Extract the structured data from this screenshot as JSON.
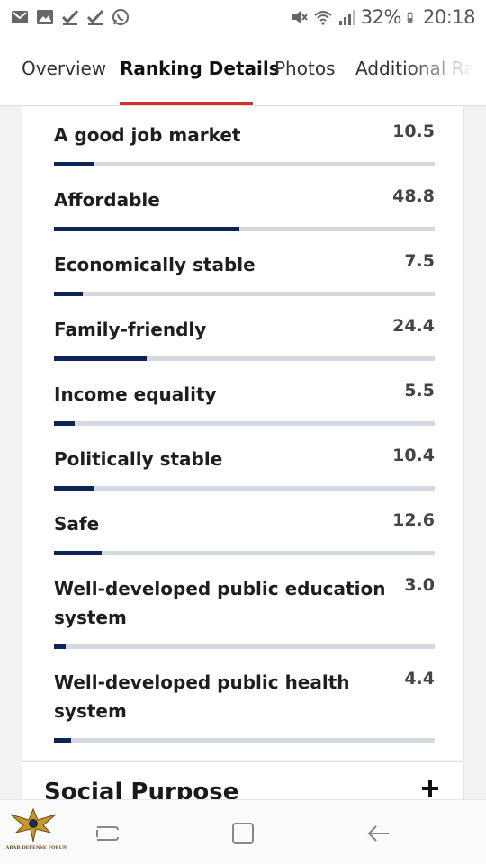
{
  "status_bar": {
    "battery_percent": "32%",
    "time": "20:18",
    "left_icons": [
      "gmail-icon",
      "gallery-icon",
      "check-icon",
      "check-icon",
      "whatsapp-icon"
    ],
    "right_icons": [
      "mute-icon",
      "wifi-icon",
      "signal-icon",
      "battery-icon"
    ]
  },
  "tabs": [
    {
      "label": "Overview",
      "active": false
    },
    {
      "label": "Ranking Details",
      "active": true
    },
    {
      "label": "Photos",
      "active": false
    },
    {
      "label": "Additional Ra",
      "active": false
    }
  ],
  "accent_color": "#d0312d",
  "bar_color": "#0c2458",
  "rankings": [
    {
      "label": "A good job market",
      "value": "10.5",
      "score": 10.5
    },
    {
      "label": "Affordable",
      "value": "48.8",
      "score": 48.8
    },
    {
      "label": "Economically stable",
      "value": "7.5",
      "score": 7.5
    },
    {
      "label": "Family-friendly",
      "value": "24.4",
      "score": 24.4
    },
    {
      "label": "Income equality",
      "value": "5.5",
      "score": 5.5
    },
    {
      "label": "Politically stable",
      "value": "10.4",
      "score": 10.4
    },
    {
      "label": "Safe",
      "value": "12.6",
      "score": 12.6
    },
    {
      "label": "Well-developed public education system",
      "value": "3.0",
      "score": 3.0
    },
    {
      "label": "Well-developed public health system",
      "value": "4.4",
      "score": 4.4
    }
  ],
  "score_max": 100,
  "section": {
    "title": "Social Purpose",
    "toggle_icon": "plus-icon"
  },
  "nav_bar": {
    "buttons": [
      "recent-apps-icon",
      "home-icon",
      "back-icon"
    ]
  },
  "watermark": {
    "text": "ARAB DEFENSE FORUM"
  }
}
